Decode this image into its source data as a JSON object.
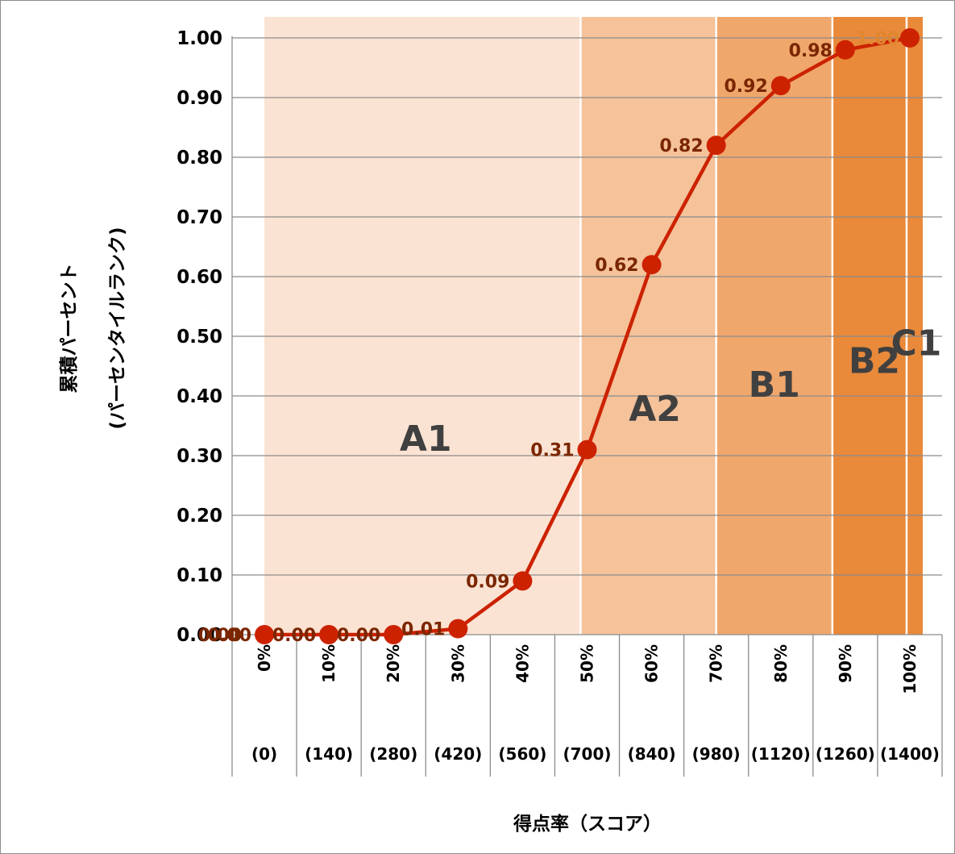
{
  "chart_data": {
    "type": "line",
    "x_categories": [
      "0%",
      "10%",
      "20%",
      "30%",
      "40%",
      "50%",
      "60%",
      "70%",
      "80%",
      "90%",
      "100%"
    ],
    "x_sublabels": [
      "(0)",
      "(140)",
      "(280)",
      "(420)",
      "(560)",
      "(700)",
      "(840)",
      "(980)",
      "(1120)",
      "(1260)",
      "(1400)"
    ],
    "x_values": [
      0,
      10,
      20,
      30,
      40,
      50,
      60,
      70,
      80,
      90,
      100
    ],
    "series": [
      {
        "x": [
          0,
          10,
          20,
          30,
          40,
          50,
          60,
          70,
          80,
          90,
          100
        ],
        "values": [
          0.0,
          0.0,
          0.0,
          0.01,
          0.09,
          0.31,
          0.62,
          0.82,
          0.92,
          0.98,
          1.0
        ],
        "labels": [
          "0.00",
          "0.00",
          "0.00",
          "0.01",
          "0.09",
          "0.31",
          "0.62",
          "0.82",
          "0.92",
          "0.98",
          "1.00"
        ],
        "color": "#cc2200"
      }
    ],
    "extra_label": "0.00",
    "yticks": [
      "0.00",
      "0.10",
      "0.20",
      "0.30",
      "0.40",
      "0.50",
      "0.60",
      "0.70",
      "0.80",
      "0.90",
      "1.00"
    ],
    "ytick_values": [
      0,
      0.1,
      0.2,
      0.3,
      0.4,
      0.5,
      0.6,
      0.7,
      0.8,
      0.9,
      1.0
    ],
    "ylim": [
      0,
      1
    ],
    "xlim": [
      -5,
      105
    ],
    "xlabel": "得点率（スコア）",
    "ylabel": [
      "累積パーセント",
      "(パーセンタイルランク)"
    ],
    "grid": true,
    "bands": [
      {
        "label": "A1",
        "x_start": 0,
        "x_end": 49,
        "color": "#fbe3d3"
      },
      {
        "label": "A2",
        "x_start": 49,
        "x_end": 70,
        "color": "#f5c29a"
      },
      {
        "label": "B1",
        "x_start": 70,
        "x_end": 88,
        "color": "#f0a76c"
      },
      {
        "label": "B2",
        "x_start": 88,
        "x_end": 99.5,
        "color": "#e9893a"
      },
      {
        "label": "C1",
        "x_start": 99.5,
        "x_end": 102,
        "color": "#e9893a"
      }
    ],
    "band_label_positions": [
      {
        "label": "A1",
        "x": 25,
        "y": 0.33
      },
      {
        "label": "A2",
        "x": 60.5,
        "y": 0.38
      },
      {
        "label": "B1",
        "x": 79,
        "y": 0.42
      },
      {
        "label": "B2",
        "x": 94.5,
        "y": 0.46
      },
      {
        "label": "C1",
        "x": 101,
        "y": 0.49
      }
    ]
  }
}
